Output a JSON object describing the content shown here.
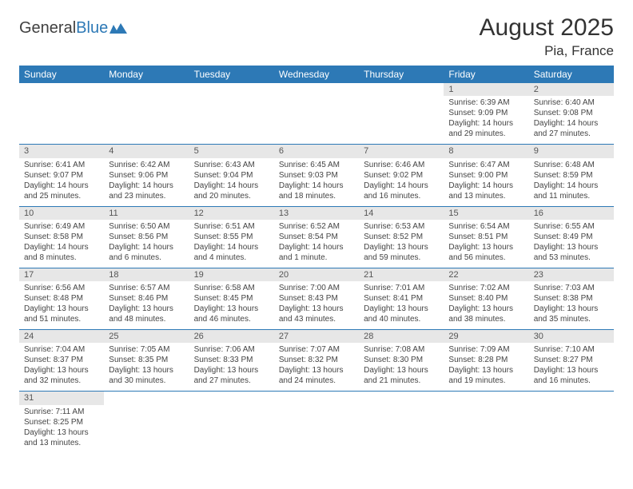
{
  "logo": {
    "word1": "General",
    "word2": "Blue"
  },
  "title": "August 2025",
  "location": "Pia, France",
  "colors": {
    "header_bg": "#2d79b6",
    "header_fg": "#ffffff",
    "daynum_bg": "#e7e7e7",
    "rule": "#2d79b6",
    "text": "#333333"
  },
  "weekdays": [
    "Sunday",
    "Monday",
    "Tuesday",
    "Wednesday",
    "Thursday",
    "Friday",
    "Saturday"
  ],
  "weeks": [
    [
      {
        "n": ""
      },
      {
        "n": ""
      },
      {
        "n": ""
      },
      {
        "n": ""
      },
      {
        "n": ""
      },
      {
        "n": "1",
        "sr": "Sunrise: 6:39 AM",
        "ss": "Sunset: 9:09 PM",
        "dl": "Daylight: 14 hours and 29 minutes."
      },
      {
        "n": "2",
        "sr": "Sunrise: 6:40 AM",
        "ss": "Sunset: 9:08 PM",
        "dl": "Daylight: 14 hours and 27 minutes."
      }
    ],
    [
      {
        "n": "3",
        "sr": "Sunrise: 6:41 AM",
        "ss": "Sunset: 9:07 PM",
        "dl": "Daylight: 14 hours and 25 minutes."
      },
      {
        "n": "4",
        "sr": "Sunrise: 6:42 AM",
        "ss": "Sunset: 9:06 PM",
        "dl": "Daylight: 14 hours and 23 minutes."
      },
      {
        "n": "5",
        "sr": "Sunrise: 6:43 AM",
        "ss": "Sunset: 9:04 PM",
        "dl": "Daylight: 14 hours and 20 minutes."
      },
      {
        "n": "6",
        "sr": "Sunrise: 6:45 AM",
        "ss": "Sunset: 9:03 PM",
        "dl": "Daylight: 14 hours and 18 minutes."
      },
      {
        "n": "7",
        "sr": "Sunrise: 6:46 AM",
        "ss": "Sunset: 9:02 PM",
        "dl": "Daylight: 14 hours and 16 minutes."
      },
      {
        "n": "8",
        "sr": "Sunrise: 6:47 AM",
        "ss": "Sunset: 9:00 PM",
        "dl": "Daylight: 14 hours and 13 minutes."
      },
      {
        "n": "9",
        "sr": "Sunrise: 6:48 AM",
        "ss": "Sunset: 8:59 PM",
        "dl": "Daylight: 14 hours and 11 minutes."
      }
    ],
    [
      {
        "n": "10",
        "sr": "Sunrise: 6:49 AM",
        "ss": "Sunset: 8:58 PM",
        "dl": "Daylight: 14 hours and 8 minutes."
      },
      {
        "n": "11",
        "sr": "Sunrise: 6:50 AM",
        "ss": "Sunset: 8:56 PM",
        "dl": "Daylight: 14 hours and 6 minutes."
      },
      {
        "n": "12",
        "sr": "Sunrise: 6:51 AM",
        "ss": "Sunset: 8:55 PM",
        "dl": "Daylight: 14 hours and 4 minutes."
      },
      {
        "n": "13",
        "sr": "Sunrise: 6:52 AM",
        "ss": "Sunset: 8:54 PM",
        "dl": "Daylight: 14 hours and 1 minute."
      },
      {
        "n": "14",
        "sr": "Sunrise: 6:53 AM",
        "ss": "Sunset: 8:52 PM",
        "dl": "Daylight: 13 hours and 59 minutes."
      },
      {
        "n": "15",
        "sr": "Sunrise: 6:54 AM",
        "ss": "Sunset: 8:51 PM",
        "dl": "Daylight: 13 hours and 56 minutes."
      },
      {
        "n": "16",
        "sr": "Sunrise: 6:55 AM",
        "ss": "Sunset: 8:49 PM",
        "dl": "Daylight: 13 hours and 53 minutes."
      }
    ],
    [
      {
        "n": "17",
        "sr": "Sunrise: 6:56 AM",
        "ss": "Sunset: 8:48 PM",
        "dl": "Daylight: 13 hours and 51 minutes."
      },
      {
        "n": "18",
        "sr": "Sunrise: 6:57 AM",
        "ss": "Sunset: 8:46 PM",
        "dl": "Daylight: 13 hours and 48 minutes."
      },
      {
        "n": "19",
        "sr": "Sunrise: 6:58 AM",
        "ss": "Sunset: 8:45 PM",
        "dl": "Daylight: 13 hours and 46 minutes."
      },
      {
        "n": "20",
        "sr": "Sunrise: 7:00 AM",
        "ss": "Sunset: 8:43 PM",
        "dl": "Daylight: 13 hours and 43 minutes."
      },
      {
        "n": "21",
        "sr": "Sunrise: 7:01 AM",
        "ss": "Sunset: 8:41 PM",
        "dl": "Daylight: 13 hours and 40 minutes."
      },
      {
        "n": "22",
        "sr": "Sunrise: 7:02 AM",
        "ss": "Sunset: 8:40 PM",
        "dl": "Daylight: 13 hours and 38 minutes."
      },
      {
        "n": "23",
        "sr": "Sunrise: 7:03 AM",
        "ss": "Sunset: 8:38 PM",
        "dl": "Daylight: 13 hours and 35 minutes."
      }
    ],
    [
      {
        "n": "24",
        "sr": "Sunrise: 7:04 AM",
        "ss": "Sunset: 8:37 PM",
        "dl": "Daylight: 13 hours and 32 minutes."
      },
      {
        "n": "25",
        "sr": "Sunrise: 7:05 AM",
        "ss": "Sunset: 8:35 PM",
        "dl": "Daylight: 13 hours and 30 minutes."
      },
      {
        "n": "26",
        "sr": "Sunrise: 7:06 AM",
        "ss": "Sunset: 8:33 PM",
        "dl": "Daylight: 13 hours and 27 minutes."
      },
      {
        "n": "27",
        "sr": "Sunrise: 7:07 AM",
        "ss": "Sunset: 8:32 PM",
        "dl": "Daylight: 13 hours and 24 minutes."
      },
      {
        "n": "28",
        "sr": "Sunrise: 7:08 AM",
        "ss": "Sunset: 8:30 PM",
        "dl": "Daylight: 13 hours and 21 minutes."
      },
      {
        "n": "29",
        "sr": "Sunrise: 7:09 AM",
        "ss": "Sunset: 8:28 PM",
        "dl": "Daylight: 13 hours and 19 minutes."
      },
      {
        "n": "30",
        "sr": "Sunrise: 7:10 AM",
        "ss": "Sunset: 8:27 PM",
        "dl": "Daylight: 13 hours and 16 minutes."
      }
    ],
    [
      {
        "n": "31",
        "sr": "Sunrise: 7:11 AM",
        "ss": "Sunset: 8:25 PM",
        "dl": "Daylight: 13 hours and 13 minutes."
      },
      {
        "n": ""
      },
      {
        "n": ""
      },
      {
        "n": ""
      },
      {
        "n": ""
      },
      {
        "n": ""
      },
      {
        "n": ""
      }
    ]
  ]
}
